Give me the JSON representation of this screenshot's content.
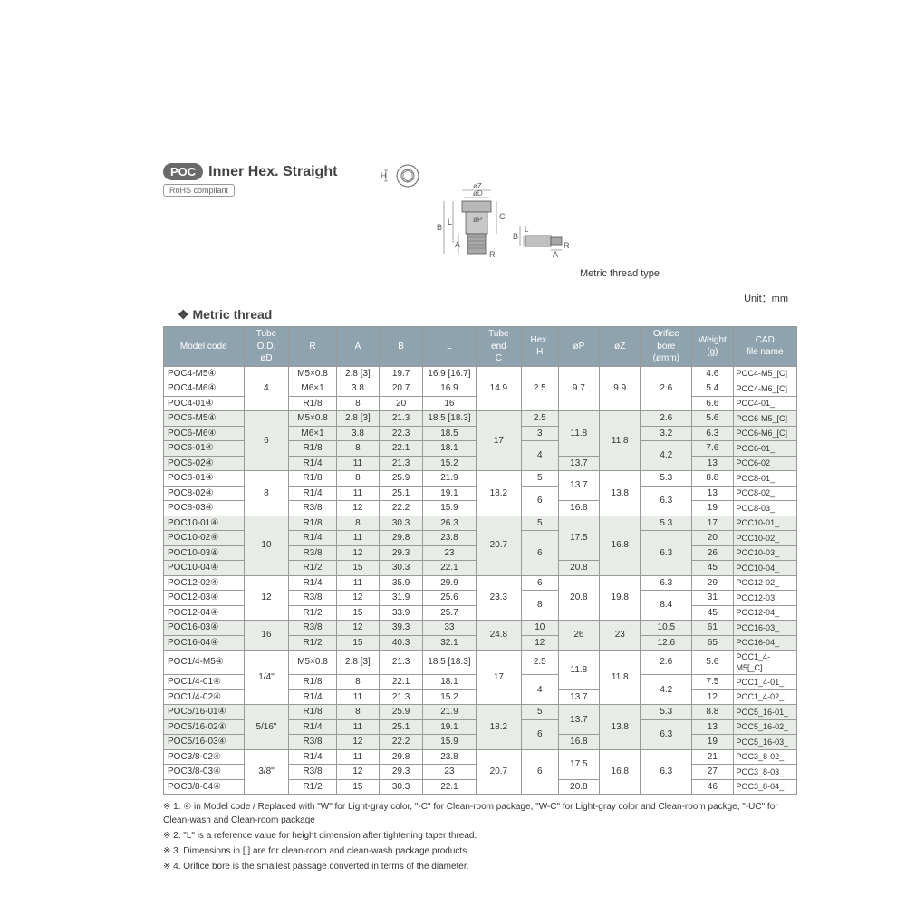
{
  "header": {
    "badge": "POC",
    "title": "Inner Hex. Straight",
    "rohs": "RoHS compliant"
  },
  "diagram": {
    "labels": {
      "H": "H",
      "oZ": "øZ",
      "oD": "øD",
      "oP": "øP",
      "B": "B",
      "L": "L",
      "A": "A",
      "C": "C",
      "R": "R"
    },
    "side_label": "Metric thread type"
  },
  "section": {
    "heading": "Metric thread",
    "unit": "Unit：mm"
  },
  "columns": [
    "Model code",
    "Tube O.D.\nøD",
    "R",
    "A",
    "B",
    "L",
    "Tube end\nC",
    "Hex.\nH",
    "øP",
    "øZ",
    "Orifice bore\n(ømm)",
    "Weight\n(g)",
    "CAD\nfile name"
  ],
  "col_widths": [
    "78",
    "44",
    "46",
    "42",
    "42",
    "52",
    "44",
    "36",
    "40",
    "40",
    "50",
    "40",
    "62"
  ],
  "rows": [
    {
      "b": 0,
      "m": "POC4-M5④",
      "od": {
        "v": "4",
        "rs": 3
      },
      "r": "M5×0.8",
      "a": "2.8 [3]",
      "bv": "19.7",
      "l": "16.9 [16.7]",
      "c": {
        "v": "14.9",
        "rs": 3
      },
      "h": {
        "v": "2.5",
        "rs": 3
      },
      "op": {
        "v": "9.7",
        "rs": 3
      },
      "oz": {
        "v": "9.9",
        "rs": 3
      },
      "ob": {
        "v": "2.6",
        "rs": 3
      },
      "w": "4.6",
      "cad": "POC4-M5_[C]"
    },
    {
      "b": 0,
      "m": "POC4-M6④",
      "r": "M6×1",
      "a": "3.8",
      "bv": "20.7",
      "l": "16.9",
      "w": "5.4",
      "cad": "POC4-M6_[C]"
    },
    {
      "b": 0,
      "m": "POC4-01④",
      "r": "R1/8",
      "a": "8",
      "bv": "20",
      "l": "16",
      "w": "6.6",
      "cad": "POC4-01_"
    },
    {
      "b": 1,
      "m": "POC6-M5④",
      "od": {
        "v": "6",
        "rs": 4
      },
      "r": "M5×0.8",
      "a": "2.8 [3]",
      "bv": "21.3",
      "l": "18.5 [18.3]",
      "c": {
        "v": "17",
        "rs": 4
      },
      "h": "2.5",
      "op": {
        "v": "11.8",
        "rs": 3
      },
      "oz": {
        "v": "11.8",
        "rs": 4
      },
      "ob": "2.6",
      "w": "5.6",
      "cad": "POC6-M5_[C]"
    },
    {
      "b": 1,
      "m": "POC6-M6④",
      "r": "M6×1",
      "a": "3.8",
      "bv": "22.3",
      "l": "18.5",
      "h": "3",
      "ob": "3.2",
      "w": "6.3",
      "cad": "POC6-M6_[C]"
    },
    {
      "b": 1,
      "m": "POC6-01④",
      "r": "R1/8",
      "a": "8",
      "bv": "22.1",
      "l": "18.1",
      "h": {
        "v": "4",
        "rs": 2
      },
      "ob": {
        "v": "4.2",
        "rs": 2
      },
      "w": "7.6",
      "cad": "POC6-01_"
    },
    {
      "b": 1,
      "m": "POC6-02④",
      "r": "R1/4",
      "a": "11",
      "bv": "21.3",
      "l": "15.2",
      "op": "13.7",
      "w": "13",
      "cad": "POC6-02_"
    },
    {
      "b": 0,
      "m": "POC8-01④",
      "od": {
        "v": "8",
        "rs": 3
      },
      "r": "R1/8",
      "a": "8",
      "bv": "25.9",
      "l": "21.9",
      "c": {
        "v": "18.2",
        "rs": 3
      },
      "h": "5",
      "op": {
        "v": "13.7",
        "rs": 2
      },
      "oz": {
        "v": "13.8",
        "rs": 3
      },
      "ob": "5.3",
      "w": "8.8",
      "cad": "POC8-01_"
    },
    {
      "b": 0,
      "m": "POC8-02④",
      "r": "R1/4",
      "a": "11",
      "bv": "25.1",
      "l": "19.1",
      "h": {
        "v": "6",
        "rs": 2
      },
      "ob": {
        "v": "6.3",
        "rs": 2
      },
      "w": "13",
      "cad": "POC8-02_"
    },
    {
      "b": 0,
      "m": "POC8-03④",
      "r": "R3/8",
      "a": "12",
      "bv": "22.2",
      "l": "15.9",
      "op": "16.8",
      "w": "19",
      "cad": "POC8-03_"
    },
    {
      "b": 1,
      "m": "POC10-01④",
      "od": {
        "v": "10",
        "rs": 4
      },
      "r": "R1/8",
      "a": "8",
      "bv": "30.3",
      "l": "26.3",
      "c": {
        "v": "20.7",
        "rs": 4
      },
      "h": "5",
      "op": {
        "v": "17.5",
        "rs": 3
      },
      "oz": {
        "v": "16.8",
        "rs": 4
      },
      "ob": "5.3",
      "w": "17",
      "cad": "POC10-01_"
    },
    {
      "b": 1,
      "m": "POC10-02④",
      "r": "R1/4",
      "a": "11",
      "bv": "29.8",
      "l": "23.8",
      "h": {
        "v": "6",
        "rs": 3
      },
      "ob": {
        "v": "6.3",
        "rs": 3
      },
      "w": "20",
      "cad": "POC10-02_"
    },
    {
      "b": 1,
      "m": "POC10-03④",
      "r": "R3/8",
      "a": "12",
      "bv": "29.3",
      "l": "23",
      "w": "26",
      "cad": "POC10-03_"
    },
    {
      "b": 1,
      "m": "POC10-04④",
      "r": "R1/2",
      "a": "15",
      "bv": "30.3",
      "l": "22.1",
      "op": "20.8",
      "w": "45",
      "cad": "POC10-04_"
    },
    {
      "b": 0,
      "m": "POC12-02④",
      "od": {
        "v": "12",
        "rs": 3
      },
      "r": "R1/4",
      "a": "11",
      "bv": "35.9",
      "l": "29.9",
      "c": {
        "v": "23.3",
        "rs": 3
      },
      "h": "6",
      "op": {
        "v": "20.8",
        "rs": 3
      },
      "oz": {
        "v": "19.8",
        "rs": 3
      },
      "ob": "6.3",
      "w": "29",
      "cad": "POC12-02_"
    },
    {
      "b": 0,
      "m": "POC12-03④",
      "r": "R3/8",
      "a": "12",
      "bv": "31.9",
      "l": "25.6",
      "h": {
        "v": "8",
        "rs": 2
      },
      "ob": {
        "v": "8.4",
        "rs": 2
      },
      "w": "31",
      "cad": "POC12-03_"
    },
    {
      "b": 0,
      "m": "POC12-04④",
      "r": "R1/2",
      "a": "15",
      "bv": "33.9",
      "l": "25.7",
      "w": "45",
      "cad": "POC12-04_"
    },
    {
      "b": 1,
      "m": "POC16-03④",
      "od": {
        "v": "16",
        "rs": 2
      },
      "r": "R3/8",
      "a": "12",
      "bv": "39.3",
      "l": "33",
      "c": {
        "v": "24.8",
        "rs": 2
      },
      "h": "10",
      "op": {
        "v": "26",
        "rs": 2
      },
      "oz": {
        "v": "23",
        "rs": 2
      },
      "ob": "10.5",
      "w": "61",
      "cad": "POC16-03_"
    },
    {
      "b": 1,
      "m": "POC16-04④",
      "r": "R1/2",
      "a": "15",
      "bv": "40.3",
      "l": "32.1",
      "h": "12",
      "ob": "12.6",
      "w": "65",
      "cad": "POC16-04_"
    },
    {
      "b": 0,
      "m": "POC1/4-M5④",
      "od": {
        "v": "1/4\"",
        "rs": 3
      },
      "r": "M5×0.8",
      "a": "2.8 [3]",
      "bv": "21.3",
      "l": "18.5 [18.3]",
      "c": {
        "v": "17",
        "rs": 3
      },
      "h": "2.5",
      "op": {
        "v": "11.8",
        "rs": 2
      },
      "oz": {
        "v": "11.8",
        "rs": 3
      },
      "ob": "2.6",
      "w": "5.6",
      "cad": "POC1_4-M5[_C]"
    },
    {
      "b": 0,
      "m": "POC1/4-01④",
      "r": "R1/8",
      "a": "8",
      "bv": "22.1",
      "l": "18.1",
      "h": {
        "v": "4",
        "rs": 2
      },
      "ob": {
        "v": "4.2",
        "rs": 2
      },
      "w": "7.5",
      "cad": "POC1_4-01_"
    },
    {
      "b": 0,
      "m": "POC1/4-02④",
      "r": "R1/4",
      "a": "11",
      "bv": "21.3",
      "l": "15.2",
      "op": "13.7",
      "w": "12",
      "cad": "POC1_4-02_"
    },
    {
      "b": 1,
      "m": "POC5/16-01④",
      "od": {
        "v": "5/16\"",
        "rs": 3
      },
      "r": "R1/8",
      "a": "8",
      "bv": "25.9",
      "l": "21.9",
      "c": {
        "v": "18.2",
        "rs": 3
      },
      "h": "5",
      "op": {
        "v": "13.7",
        "rs": 2
      },
      "oz": {
        "v": "13.8",
        "rs": 3
      },
      "ob": "5.3",
      "w": "8.8",
      "cad": "POC5_16-01_"
    },
    {
      "b": 1,
      "m": "POC5/16-02④",
      "r": "R1/4",
      "a": "11",
      "bv": "25.1",
      "l": "19.1",
      "h": {
        "v": "6",
        "rs": 2
      },
      "ob": {
        "v": "6.3",
        "rs": 2
      },
      "w": "13",
      "cad": "POC5_16-02_"
    },
    {
      "b": 1,
      "m": "POC5/16-03④",
      "r": "R3/8",
      "a": "12",
      "bv": "22.2",
      "l": "15.9",
      "op": "16.8",
      "w": "19",
      "cad": "POC5_16-03_"
    },
    {
      "b": 0,
      "m": "POC3/8-02④",
      "od": {
        "v": "3/8\"",
        "rs": 3
      },
      "r": "R1/4",
      "a": "11",
      "bv": "29.8",
      "l": "23.8",
      "c": {
        "v": "20.7",
        "rs": 3
      },
      "h": {
        "v": "6",
        "rs": 3
      },
      "op": {
        "v": "17.5",
        "rs": 2
      },
      "oz": {
        "v": "16.8",
        "rs": 3
      },
      "ob": {
        "v": "6.3",
        "rs": 3
      },
      "w": "21",
      "cad": "POC3_8-02_"
    },
    {
      "b": 0,
      "m": "POC3/8-03④",
      "r": "R3/8",
      "a": "12",
      "bv": "29.3",
      "l": "23",
      "w": "27",
      "cad": "POC3_8-03_"
    },
    {
      "b": 0,
      "m": "POC3/8-04④",
      "r": "R1/2",
      "a": "15",
      "bv": "30.3",
      "l": "22.1",
      "op": "20.8",
      "w": "46",
      "cad": "POC3_8-04_"
    }
  ],
  "footnotes": [
    "※ 1. ④ in Model code / Replaced with \"W\" for Light-gray color, \"-C\" for Clean-room package, \"W-C\" for Light-gray color and Clean-room packge, \"-UC\" for Clean-wash and Clean-room package",
    "※ 2. \"L\" is a reference value for height dimension after tightening taper thread.",
    "※ 3. Dimensions in [ ] are for clean-room and clean-wash package products.",
    "※ 4. Orifice bore is the smallest passage converted in terms of the diameter."
  ]
}
